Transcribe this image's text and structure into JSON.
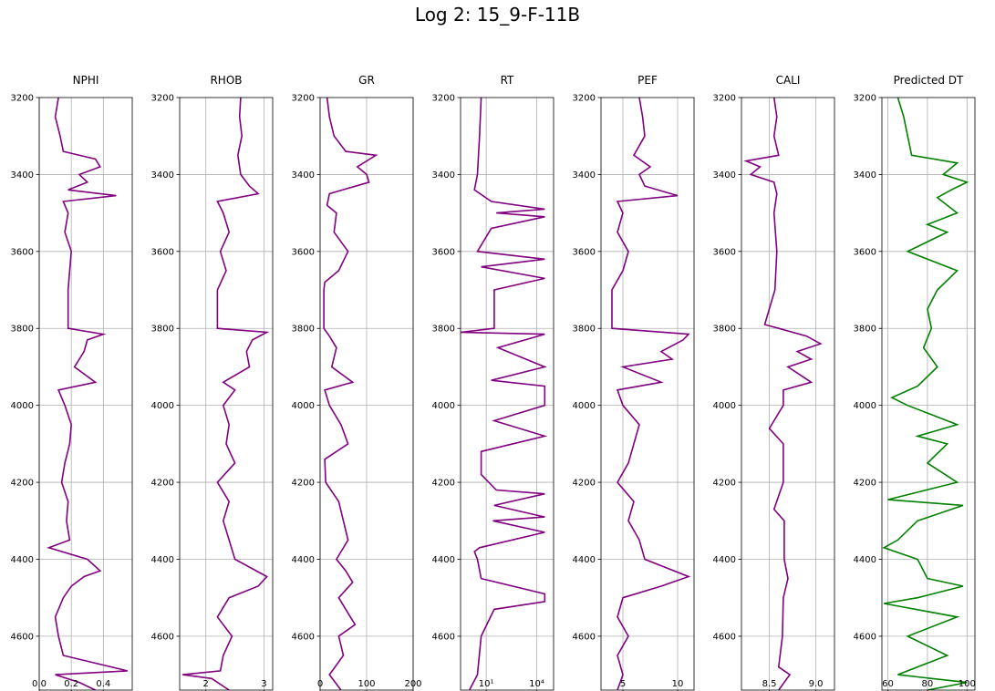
{
  "figure": {
    "title": "Log 2: 15_9-F-11B"
  },
  "chart_data": [
    {
      "type": "line",
      "title": "NPHI",
      "xlim": [
        0,
        0.58
      ],
      "xscale": "linear",
      "xticks": [
        0.0,
        0.2,
        0.4
      ],
      "xtick_labels": [
        "0.0",
        "0.2",
        "0.4"
      ],
      "ylim": [
        3200,
        4740
      ],
      "yticks": [
        3400,
        3600,
        3800,
        4000,
        4200,
        4400,
        4600
      ],
      "y_inverted": true,
      "grid": true,
      "series": [
        {
          "color": "#800080",
          "depth": [
            3200,
            3250,
            3300,
            3340,
            3360,
            3380,
            3400,
            3420,
            3440,
            3455,
            3470,
            3500,
            3550,
            3600,
            3650,
            3700,
            3750,
            3800,
            3815,
            3830,
            3860,
            3900,
            3940,
            3960,
            4000,
            4050,
            4100,
            4150,
            4200,
            4250,
            4300,
            4350,
            4370,
            4400,
            4430,
            4445,
            4470,
            4500,
            4550,
            4600,
            4650,
            4690,
            4700,
            4720,
            4740
          ],
          "values": [
            0.12,
            0.1,
            0.13,
            0.15,
            0.35,
            0.38,
            0.25,
            0.3,
            0.18,
            0.48,
            0.15,
            0.18,
            0.16,
            0.2,
            0.19,
            0.18,
            0.18,
            0.18,
            0.4,
            0.3,
            0.28,
            0.22,
            0.35,
            0.12,
            0.16,
            0.2,
            0.19,
            0.16,
            0.14,
            0.18,
            0.17,
            0.19,
            0.06,
            0.3,
            0.38,
            0.28,
            0.2,
            0.15,
            0.1,
            0.12,
            0.15,
            0.55,
            0.1,
            0.25,
            0.35
          ]
        }
      ]
    },
    {
      "type": "line",
      "title": "RHOB",
      "xlim": [
        1.55,
        3.15
      ],
      "xscale": "linear",
      "xticks": [
        2,
        3
      ],
      "xtick_labels": [
        "2",
        "3"
      ],
      "ylim": [
        3200,
        4740
      ],
      "yticks": [
        3400,
        3600,
        3800,
        4000,
        4200,
        4400,
        4600
      ],
      "y_inverted": true,
      "grid": true,
      "series": [
        {
          "color": "#800080",
          "depth": [
            3200,
            3250,
            3300,
            3350,
            3400,
            3430,
            3450,
            3470,
            3500,
            3550,
            3600,
            3650,
            3700,
            3750,
            3800,
            3810,
            3830,
            3860,
            3900,
            3940,
            3960,
            4000,
            4050,
            4100,
            4150,
            4200,
            4250,
            4300,
            4350,
            4400,
            4445,
            4470,
            4500,
            4550,
            4600,
            4650,
            4690,
            4700,
            4710,
            4740
          ],
          "values": [
            2.6,
            2.58,
            2.62,
            2.55,
            2.6,
            2.75,
            2.9,
            2.2,
            2.3,
            2.4,
            2.25,
            2.35,
            2.2,
            2.2,
            2.2,
            3.05,
            2.8,
            2.7,
            2.75,
            2.3,
            2.5,
            2.3,
            2.4,
            2.35,
            2.5,
            2.2,
            2.4,
            2.3,
            2.4,
            2.5,
            3.05,
            2.9,
            2.4,
            2.2,
            2.45,
            2.3,
            2.25,
            1.6,
            2.1,
            2.4
          ]
        }
      ]
    },
    {
      "type": "line",
      "title": "GR",
      "xlim": [
        0,
        200
      ],
      "xscale": "linear",
      "xticks": [
        0,
        100,
        200
      ],
      "xtick_labels": [
        "0",
        "100",
        "200"
      ],
      "ylim": [
        3200,
        4740
      ],
      "yticks": [
        3400,
        3600,
        3800,
        4000,
        4200,
        4400,
        4600
      ],
      "y_inverted": true,
      "grid": true,
      "series": [
        {
          "color": "#800080",
          "depth": [
            3200,
            3250,
            3300,
            3340,
            3350,
            3380,
            3400,
            3420,
            3450,
            3480,
            3500,
            3550,
            3600,
            3650,
            3680,
            3700,
            3750,
            3800,
            3820,
            3850,
            3900,
            3940,
            3960,
            4000,
            4050,
            4100,
            4140,
            4200,
            4250,
            4300,
            4350,
            4400,
            4430,
            4460,
            4500,
            4570,
            4600,
            4650,
            4700,
            4740
          ],
          "values": [
            15,
            20,
            30,
            55,
            120,
            80,
            100,
            105,
            20,
            15,
            35,
            30,
            60,
            40,
            10,
            8,
            8,
            8,
            20,
            35,
            25,
            70,
            10,
            20,
            45,
            60,
            10,
            12,
            40,
            50,
            60,
            35,
            55,
            70,
            40,
            75,
            40,
            50,
            20,
            45
          ]
        }
      ]
    },
    {
      "type": "line",
      "title": "RT",
      "xlim": [
        0.3,
        100000
      ],
      "xscale": "log",
      "xticks": [
        10,
        10000
      ],
      "xtick_labels": [
        "10¹",
        "10⁴"
      ],
      "ylim": [
        3200,
        4740
      ],
      "yticks": [
        3400,
        3600,
        3800,
        4000,
        4200,
        4400,
        4600
      ],
      "y_inverted": true,
      "grid": true,
      "series": [
        {
          "color": "#800080",
          "depth": [
            3200,
            3300,
            3400,
            3440,
            3470,
            3490,
            3500,
            3510,
            3540,
            3600,
            3620,
            3640,
            3670,
            3700,
            3800,
            3810,
            3815,
            3850,
            3900,
            3935,
            3950,
            4000,
            4040,
            4080,
            4120,
            4180,
            4220,
            4230,
            4260,
            4290,
            4300,
            4330,
            4370,
            4380,
            4400,
            4450,
            4490,
            4510,
            4530,
            4600,
            4700,
            4740
          ],
          "values": [
            5,
            4,
            3,
            2,
            20,
            30000,
            40,
            30000,
            20,
            3,
            30000,
            5,
            30000,
            30,
            30,
            0.3,
            30000,
            50,
            30000,
            20,
            30000,
            30000,
            30,
            30000,
            5,
            5,
            40,
            30000,
            30,
            30000,
            25,
            30000,
            4,
            2,
            3,
            5,
            30000,
            30000,
            30,
            5,
            3,
            1
          ]
        }
      ]
    },
    {
      "type": "line",
      "title": "PEF",
      "xlim": [
        3,
        11.5
      ],
      "xscale": "linear",
      "xticks": [
        5,
        10
      ],
      "xtick_labels": [
        "5",
        "10"
      ],
      "ylim": [
        3200,
        4740
      ],
      "yticks": [
        3400,
        3600,
        3800,
        4000,
        4200,
        4400,
        4600
      ],
      "y_inverted": true,
      "grid": true,
      "series": [
        {
          "color": "#800080",
          "depth": [
            3200,
            3250,
            3300,
            3350,
            3380,
            3400,
            3430,
            3455,
            3470,
            3500,
            3550,
            3600,
            3650,
            3700,
            3750,
            3800,
            3815,
            3830,
            3860,
            3880,
            3900,
            3940,
            3960,
            4000,
            4050,
            4100,
            4150,
            4200,
            4250,
            4300,
            4350,
            4400,
            4445,
            4470,
            4500,
            4550,
            4600,
            4650,
            4700,
            4740
          ],
          "values": [
            6.5,
            6.8,
            7.0,
            6.0,
            7.5,
            6.5,
            7.0,
            10.0,
            4.5,
            5.0,
            4.5,
            5.5,
            5.0,
            4.0,
            4.0,
            4.0,
            11.0,
            10.5,
            8.5,
            9.5,
            5.0,
            8.5,
            4.5,
            5.0,
            6.5,
            6.0,
            5.5,
            4.5,
            6.0,
            5.5,
            6.5,
            7.0,
            11.0,
            8.5,
            5.0,
            4.5,
            5.5,
            4.5,
            5.0,
            4.5
          ]
        }
      ]
    },
    {
      "type": "line",
      "title": "CALI",
      "xlim": [
        8.2,
        9.2
      ],
      "xscale": "linear",
      "xticks": [
        8.5,
        9.0
      ],
      "xtick_labels": [
        "8.5",
        "9.0"
      ],
      "ylim": [
        3200,
        4740
      ],
      "yticks": [
        3400,
        3600,
        3800,
        4000,
        4200,
        4400,
        4600
      ],
      "y_inverted": true,
      "grid": true,
      "series": [
        {
          "color": "#800080",
          "depth": [
            3200,
            3250,
            3300,
            3350,
            3365,
            3380,
            3400,
            3420,
            3450,
            3500,
            3600,
            3700,
            3790,
            3800,
            3820,
            3840,
            3860,
            3880,
            3900,
            3940,
            3960,
            4000,
            4060,
            4100,
            4200,
            4270,
            4300,
            4400,
            4450,
            4500,
            4600,
            4680,
            4700,
            4740
          ],
          "values": [
            8.55,
            8.58,
            8.55,
            8.6,
            8.25,
            8.4,
            8.3,
            8.55,
            8.58,
            8.55,
            8.58,
            8.56,
            8.45,
            8.6,
            8.9,
            9.05,
            8.8,
            8.95,
            8.7,
            8.95,
            8.65,
            8.65,
            8.5,
            8.65,
            8.65,
            8.55,
            8.66,
            8.66,
            8.7,
            8.65,
            8.64,
            8.6,
            8.72,
            8.6
          ]
        }
      ]
    },
    {
      "type": "line",
      "title": "Predicted DT",
      "xlim": [
        57,
        104
      ],
      "xscale": "linear",
      "xticks": [
        60,
        80,
        100
      ],
      "xtick_labels": [
        "60",
        "80",
        "100"
      ],
      "ylim": [
        3200,
        4740
      ],
      "yticks": [
        3400,
        3600,
        3800,
        4000,
        4200,
        4400,
        4600
      ],
      "y_inverted": true,
      "grid": true,
      "series": [
        {
          "color": "#008000",
          "depth": [
            3200,
            3250,
            3300,
            3350,
            3370,
            3400,
            3420,
            3440,
            3460,
            3500,
            3530,
            3550,
            3600,
            3650,
            3700,
            3750,
            3800,
            3850,
            3900,
            3950,
            3980,
            4000,
            4050,
            4080,
            4100,
            4150,
            4200,
            4245,
            4260,
            4300,
            4350,
            4370,
            4400,
            4450,
            4470,
            4500,
            4515,
            4550,
            4600,
            4650,
            4700,
            4720,
            4740
          ],
          "values": [
            65,
            68,
            70,
            72,
            95,
            88,
            100,
            92,
            85,
            95,
            80,
            90,
            70,
            95,
            85,
            80,
            82,
            78,
            85,
            75,
            62,
            70,
            95,
            75,
            90,
            80,
            95,
            60,
            98,
            75,
            65,
            58,
            75,
            80,
            98,
            75,
            58,
            95,
            70,
            90,
            65,
            100,
            80
          ]
        }
      ]
    }
  ]
}
